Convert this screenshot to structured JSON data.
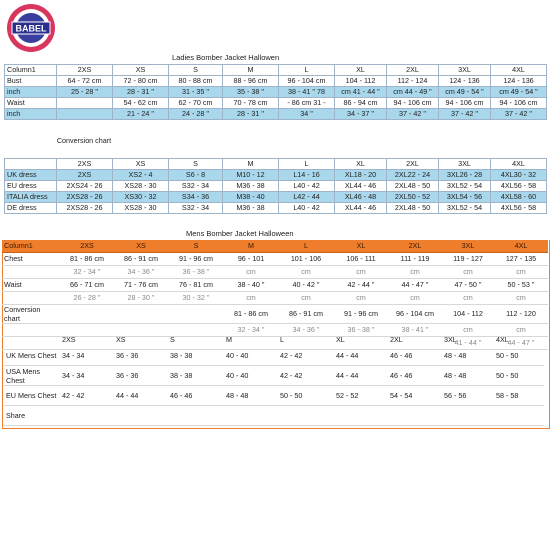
{
  "ladies_title": "Ladies Bomber Jacket Hallowen",
  "mens_title": "Mens Bomber Jacket Halloween",
  "ladies_table": {
    "header": [
      "Column1",
      "2XS",
      "XS",
      "S",
      "M",
      "L",
      "XL",
      "2XL",
      "3XL",
      "4XL"
    ],
    "rows": [
      [
        "Bust",
        "64 - 72 cm",
        "72 - 80 cm",
        "80 - 88 cm",
        "88 - 96 cm",
        "96 - 104 cm",
        "104 - 112",
        "112 - 124",
        "124 - 136",
        "124 - 136"
      ],
      [
        "inch",
        "25 - 28 \"",
        "28 - 31 \"",
        "31 - 35 \"",
        "35 - 38 \"",
        "38 - 41 \" 78",
        "cm 41 - 44 \"",
        "cm 44 - 49 \"",
        "cm 49 - 54 \"",
        "cm 49 - 54 \""
      ],
      [
        "Waist",
        "",
        "54 - 62 cm",
        "62 - 70 cm",
        "70 - 78 cm",
        "- 86 cm 31 -",
        "86 - 94 cm",
        "94 - 106 cm",
        "94 - 106 cm",
        "94 - 106 cm"
      ],
      [
        "inch",
        "",
        "21 - 24 \"",
        "24 - 28 \"",
        "28 - 31 \"",
        "34 \"",
        "34 - 37 \"",
        "37 - 42 \"",
        "37 - 42 \"",
        "37 - 42 \""
      ]
    ]
  },
  "conversion_label": "Conversion chart",
  "ladies_conv": {
    "header": [
      "",
      "2XS",
      "XS",
      "S",
      "M",
      "L",
      "XL",
      "2XL",
      "3XL",
      "4XL"
    ],
    "rows": [
      [
        "UK dress",
        "2XS",
        "XS2 - 4",
        "S6 - 8",
        "M10 - 12",
        "L14 - 16",
        "XL18 - 20",
        "2XL22 - 24",
        "3XL26 - 28",
        "4XL30 - 32"
      ],
      [
        "EU dress",
        "2XS24 - 26",
        "XS28 - 30",
        "S32 - 34",
        "M36 - 38",
        "L40 - 42",
        "XL44 - 46",
        "2XL48 - 50",
        "3XL52 - 54",
        "4XL56 - 58"
      ],
      [
        "ITALIA dress",
        "2XS28 - 26",
        "XS30 - 32",
        "S34 - 36",
        "M38 - 40",
        "L42 - 44",
        "XL46 - 48",
        "2XL50 - 52",
        "3XL54 - 56",
        "4XL58 - 60"
      ],
      [
        "DE dress",
        "2XS28 - 26",
        "XS28 - 30",
        "S32 - 34",
        "M36 - 38",
        "L40 - 42",
        "XL44 - 46",
        "2XL48 - 50",
        "3XL52 - 54",
        "4XL56 - 58"
      ]
    ]
  },
  "mens_table": {
    "header": [
      "Column1",
      "2XS",
      "XS",
      "S",
      "M",
      "L",
      "XL",
      "2XL",
      "3XL",
      "4XL"
    ],
    "chest": [
      "Chest",
      "81 - 86 cm",
      "86 - 91 cm",
      "91 - 96 cm",
      "96 - 101",
      "101 - 106",
      "106 - 111",
      "111 - 119",
      "119 - 127",
      "127 - 135"
    ],
    "chest_inch": [
      "",
      "32 - 34 \"",
      "34 - 36 \"",
      "36 - 38 \"",
      "cm",
      "cm",
      "cm",
      "cm",
      "cm",
      "cm"
    ],
    "waist": [
      "Waist",
      "66 - 71 cm",
      "71 - 76 cm",
      "76 - 81 cm",
      "38 - 40 \"",
      "40 - 42 \"",
      "42 - 44 \"",
      "44 - 47 \"",
      "47 - 50 \"",
      "50 - 53 \""
    ],
    "waist_inch": [
      "",
      "26 - 28 \"",
      "28 - 30 \"",
      "30 - 32 \"",
      "cm",
      "cm",
      "cm",
      "cm",
      "cm",
      "cm"
    ],
    "conv_row": [
      "Conversion chart",
      "",
      "",
      "",
      "81 - 86 cm",
      "86 - 91 cm",
      "91 - 96 cm",
      "96 - 104 cm",
      "104 - 112",
      "112 - 120"
    ],
    "conv_inch": [
      "",
      "",
      "",
      "",
      "32 - 34 \"",
      "34 - 36 \"",
      "36 - 38 \"",
      "38 - 41 \"",
      "cm",
      "cm"
    ],
    "conv_inch2": [
      "",
      "",
      "",
      "",
      "",
      "",
      "",
      "",
      "41 - 44 \"",
      "44 - 47 \""
    ]
  },
  "mens_conv": {
    "header": [
      "",
      "2XS",
      "XS",
      "S",
      "M",
      "L",
      "XL",
      "2XL",
      "3XL",
      "4XL"
    ],
    "rows": [
      [
        "UK  Mens Chest",
        "34 - 34",
        "36 - 36",
        "38 - 38",
        "40 - 40",
        "42 - 42",
        "44 - 44",
        "46 - 46",
        "48 - 48",
        "50 - 50"
      ],
      [
        "USA Mens Chest",
        "34 - 34",
        "36 - 36",
        "38 - 38",
        "40 - 40",
        "42 - 42",
        "44 - 44",
        "46 - 46",
        "48 - 48",
        "50 - 50"
      ],
      [
        "EU Mens Chest",
        "42 - 42",
        "44 - 44",
        "46 - 46",
        "48 - 48",
        "50 - 50",
        "52 - 52",
        "54 - 54",
        "56 - 56",
        "58 - 58"
      ],
      [
        "Share",
        "",
        "",
        "",
        "",
        "",
        "",
        "",
        "",
        ""
      ]
    ]
  },
  "logo": {
    "text_top": "BABEL",
    "text_bottom": "BABEL FASHION",
    "ring_color": "#cc2a55",
    "inner_color": "#2a2f8f"
  }
}
